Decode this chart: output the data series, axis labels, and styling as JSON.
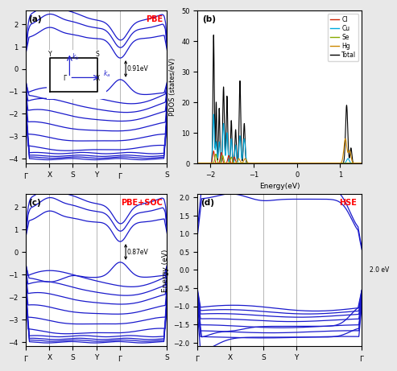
{
  "fig_bg": "#e8e8e8",
  "panel_bg": "#ffffff",
  "band_color": "#1a1acc",
  "band_lw": 0.9,
  "pdos_colors": {
    "Cl": "#cc2200",
    "Cu": "#00aadd",
    "Se": "#88aa00",
    "Hg": "#cc8800",
    "Total": "#000000"
  },
  "pdos_xlim": [
    -2.3,
    1.5
  ],
  "pdos_ylim": [
    0,
    50
  ],
  "gap_a": "0.91eV",
  "gap_c": "0.87eV",
  "gap_d": "2.0 eV"
}
